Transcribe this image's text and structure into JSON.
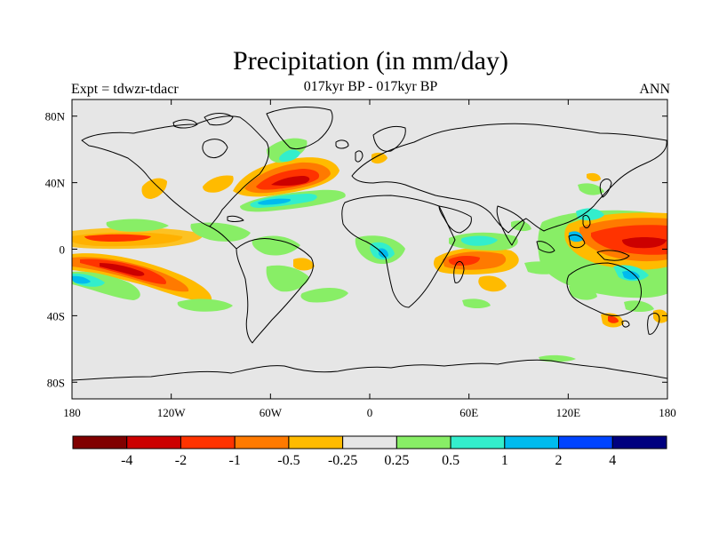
{
  "title": "Precipitation (in mm/day)",
  "subtitle": "017kyr BP - 017kyr BP",
  "left_label": "Expt = tdwzr-tdacr",
  "right_label": "ANN",
  "lat_ticks": [
    {
      "label": "80N",
      "lat": 80
    },
    {
      "label": "40N",
      "lat": 40
    },
    {
      "label": "0",
      "lat": 0
    },
    {
      "label": "40S",
      "lat": -40
    },
    {
      "label": "80S",
      "lat": -80
    }
  ],
  "lon_ticks": [
    {
      "label": "180",
      "lon": -180
    },
    {
      "label": "120W",
      "lon": -120
    },
    {
      "label": "60W",
      "lon": -60
    },
    {
      "label": "0",
      "lon": 0
    },
    {
      "label": "60E",
      "lon": 60
    },
    {
      "label": "120E",
      "lon": 120
    },
    {
      "label": "180",
      "lon": 180
    }
  ],
  "colorbar": {
    "colors": [
      "#800000",
      "#cc0000",
      "#ff3300",
      "#ff7a00",
      "#ffbb00",
      "#e6e6e6",
      "#88ee66",
      "#33eecc",
      "#00bbee",
      "#0044ff",
      "#00007f"
    ],
    "labels": [
      "-4",
      "-2",
      "-1",
      "-0.5",
      "-0.25",
      "0.25",
      "0.5",
      "1",
      "2",
      "4"
    ]
  },
  "colors": {
    "land_ocean_background": "#e6e6e6",
    "coastline": "#000000"
  }
}
